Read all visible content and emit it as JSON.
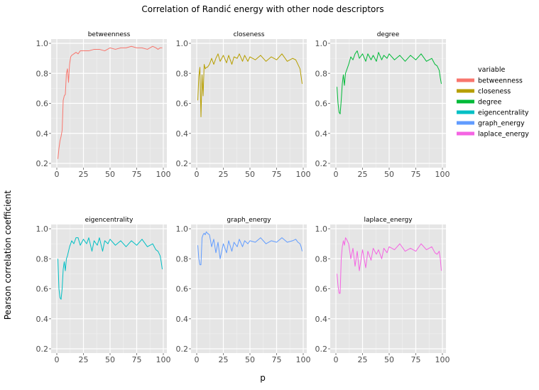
{
  "chart_data": {
    "type": "line",
    "title": "Correlation of Randić energy with other node descriptors",
    "xlabel": "p",
    "ylabel": "Pearson correlation coefficient",
    "xlim": [
      0,
      100
    ],
    "ylim": [
      0.2,
      1.0
    ],
    "x_ticks": [
      "0",
      "25",
      "50",
      "75",
      "100"
    ],
    "y_ticks": [
      "0.2",
      "0.4",
      "0.6",
      "0.8",
      "1.0"
    ],
    "grid": true,
    "legend": {
      "title": "variable",
      "position": "right"
    },
    "facets": [
      {
        "name": "betweenness",
        "color": "#F8766D",
        "x": [
          1,
          2,
          3,
          4,
          5,
          6,
          7,
          8,
          9,
          10,
          11,
          12,
          13,
          14,
          16,
          18,
          20,
          22,
          25,
          30,
          35,
          40,
          45,
          50,
          55,
          60,
          65,
          70,
          75,
          80,
          85,
          90,
          93,
          95,
          97,
          99
        ],
        "y": [
          0.23,
          0.3,
          0.35,
          0.38,
          0.42,
          0.62,
          0.65,
          0.66,
          0.8,
          0.83,
          0.74,
          0.86,
          0.91,
          0.92,
          0.93,
          0.94,
          0.93,
          0.95,
          0.95,
          0.95,
          0.96,
          0.96,
          0.95,
          0.97,
          0.96,
          0.97,
          0.97,
          0.98,
          0.97,
          0.97,
          0.96,
          0.98,
          0.97,
          0.96,
          0.97,
          0.97
        ]
      },
      {
        "name": "closeness",
        "color": "#B79F00",
        "x": [
          1,
          2,
          3,
          4,
          5,
          6,
          7,
          8,
          9,
          10,
          12,
          14,
          16,
          18,
          20,
          22,
          25,
          28,
          30,
          33,
          35,
          38,
          40,
          43,
          45,
          48,
          50,
          55,
          60,
          65,
          70,
          75,
          80,
          85,
          90,
          93,
          95,
          97,
          98,
          99
        ],
        "y": [
          0.62,
          0.78,
          0.84,
          0.51,
          0.79,
          0.65,
          0.86,
          0.83,
          0.84,
          0.84,
          0.86,
          0.9,
          0.86,
          0.9,
          0.93,
          0.88,
          0.92,
          0.87,
          0.92,
          0.86,
          0.91,
          0.9,
          0.93,
          0.88,
          0.92,
          0.88,
          0.91,
          0.89,
          0.92,
          0.88,
          0.91,
          0.89,
          0.93,
          0.88,
          0.9,
          0.89,
          0.86,
          0.83,
          0.78,
          0.73
        ]
      },
      {
        "name": "degree",
        "color": "#00BA38",
        "x": [
          1,
          2,
          3,
          4,
          5,
          6,
          7,
          8,
          9,
          10,
          12,
          14,
          16,
          18,
          20,
          22,
          25,
          28,
          30,
          33,
          35,
          38,
          40,
          43,
          45,
          48,
          50,
          55,
          60,
          65,
          70,
          75,
          80,
          85,
          90,
          93,
          95,
          97,
          98,
          99
        ],
        "y": [
          0.71,
          0.6,
          0.54,
          0.53,
          0.62,
          0.73,
          0.79,
          0.72,
          0.8,
          0.82,
          0.86,
          0.91,
          0.89,
          0.93,
          0.95,
          0.9,
          0.93,
          0.88,
          0.93,
          0.89,
          0.92,
          0.88,
          0.94,
          0.89,
          0.92,
          0.9,
          0.93,
          0.89,
          0.92,
          0.88,
          0.92,
          0.89,
          0.93,
          0.88,
          0.9,
          0.86,
          0.85,
          0.82,
          0.77,
          0.73
        ]
      },
      {
        "name": "eigencentrality",
        "color": "#00BFC4",
        "x": [
          1,
          2,
          3,
          4,
          5,
          6,
          7,
          8,
          9,
          10,
          12,
          14,
          16,
          18,
          20,
          22,
          25,
          28,
          30,
          33,
          35,
          38,
          40,
          43,
          45,
          48,
          50,
          55,
          60,
          65,
          70,
          75,
          80,
          85,
          90,
          93,
          95,
          97,
          98,
          99
        ],
        "y": [
          0.8,
          0.6,
          0.54,
          0.53,
          0.6,
          0.73,
          0.78,
          0.72,
          0.8,
          0.82,
          0.88,
          0.92,
          0.9,
          0.94,
          0.94,
          0.89,
          0.93,
          0.9,
          0.94,
          0.85,
          0.92,
          0.89,
          0.94,
          0.85,
          0.92,
          0.9,
          0.93,
          0.89,
          0.92,
          0.88,
          0.92,
          0.89,
          0.93,
          0.88,
          0.9,
          0.86,
          0.85,
          0.82,
          0.78,
          0.73
        ]
      },
      {
        "name": "graph_energy",
        "color": "#619CFF",
        "x": [
          1,
          2,
          3,
          4,
          5,
          6,
          7,
          8,
          9,
          10,
          12,
          14,
          16,
          18,
          20,
          22,
          25,
          28,
          30,
          33,
          35,
          38,
          40,
          43,
          45,
          48,
          50,
          55,
          60,
          65,
          70,
          75,
          80,
          85,
          90,
          93,
          95,
          97,
          98,
          99
        ],
        "y": [
          0.89,
          0.8,
          0.76,
          0.76,
          0.94,
          0.96,
          0.97,
          0.96,
          0.98,
          0.97,
          0.96,
          0.88,
          0.93,
          0.84,
          0.91,
          0.8,
          0.9,
          0.84,
          0.92,
          0.85,
          0.91,
          0.88,
          0.93,
          0.88,
          0.92,
          0.9,
          0.92,
          0.91,
          0.94,
          0.9,
          0.92,
          0.91,
          0.94,
          0.91,
          0.92,
          0.93,
          0.91,
          0.9,
          0.88,
          0.85
        ]
      },
      {
        "name": "laplace_energy",
        "color": "#F564E3",
        "x": [
          1,
          2,
          3,
          4,
          5,
          6,
          7,
          8,
          9,
          10,
          12,
          14,
          16,
          18,
          20,
          22,
          25,
          28,
          30,
          33,
          35,
          38,
          40,
          43,
          45,
          48,
          50,
          55,
          60,
          65,
          70,
          75,
          80,
          85,
          90,
          93,
          95,
          97,
          98,
          99
        ],
        "y": [
          0.7,
          0.62,
          0.57,
          0.57,
          0.8,
          0.88,
          0.92,
          0.89,
          0.94,
          0.93,
          0.9,
          0.8,
          0.87,
          0.75,
          0.85,
          0.72,
          0.86,
          0.74,
          0.85,
          0.79,
          0.87,
          0.83,
          0.86,
          0.8,
          0.87,
          0.84,
          0.88,
          0.86,
          0.9,
          0.85,
          0.87,
          0.85,
          0.9,
          0.86,
          0.88,
          0.84,
          0.83,
          0.85,
          0.8,
          0.72
        ]
      }
    ]
  }
}
